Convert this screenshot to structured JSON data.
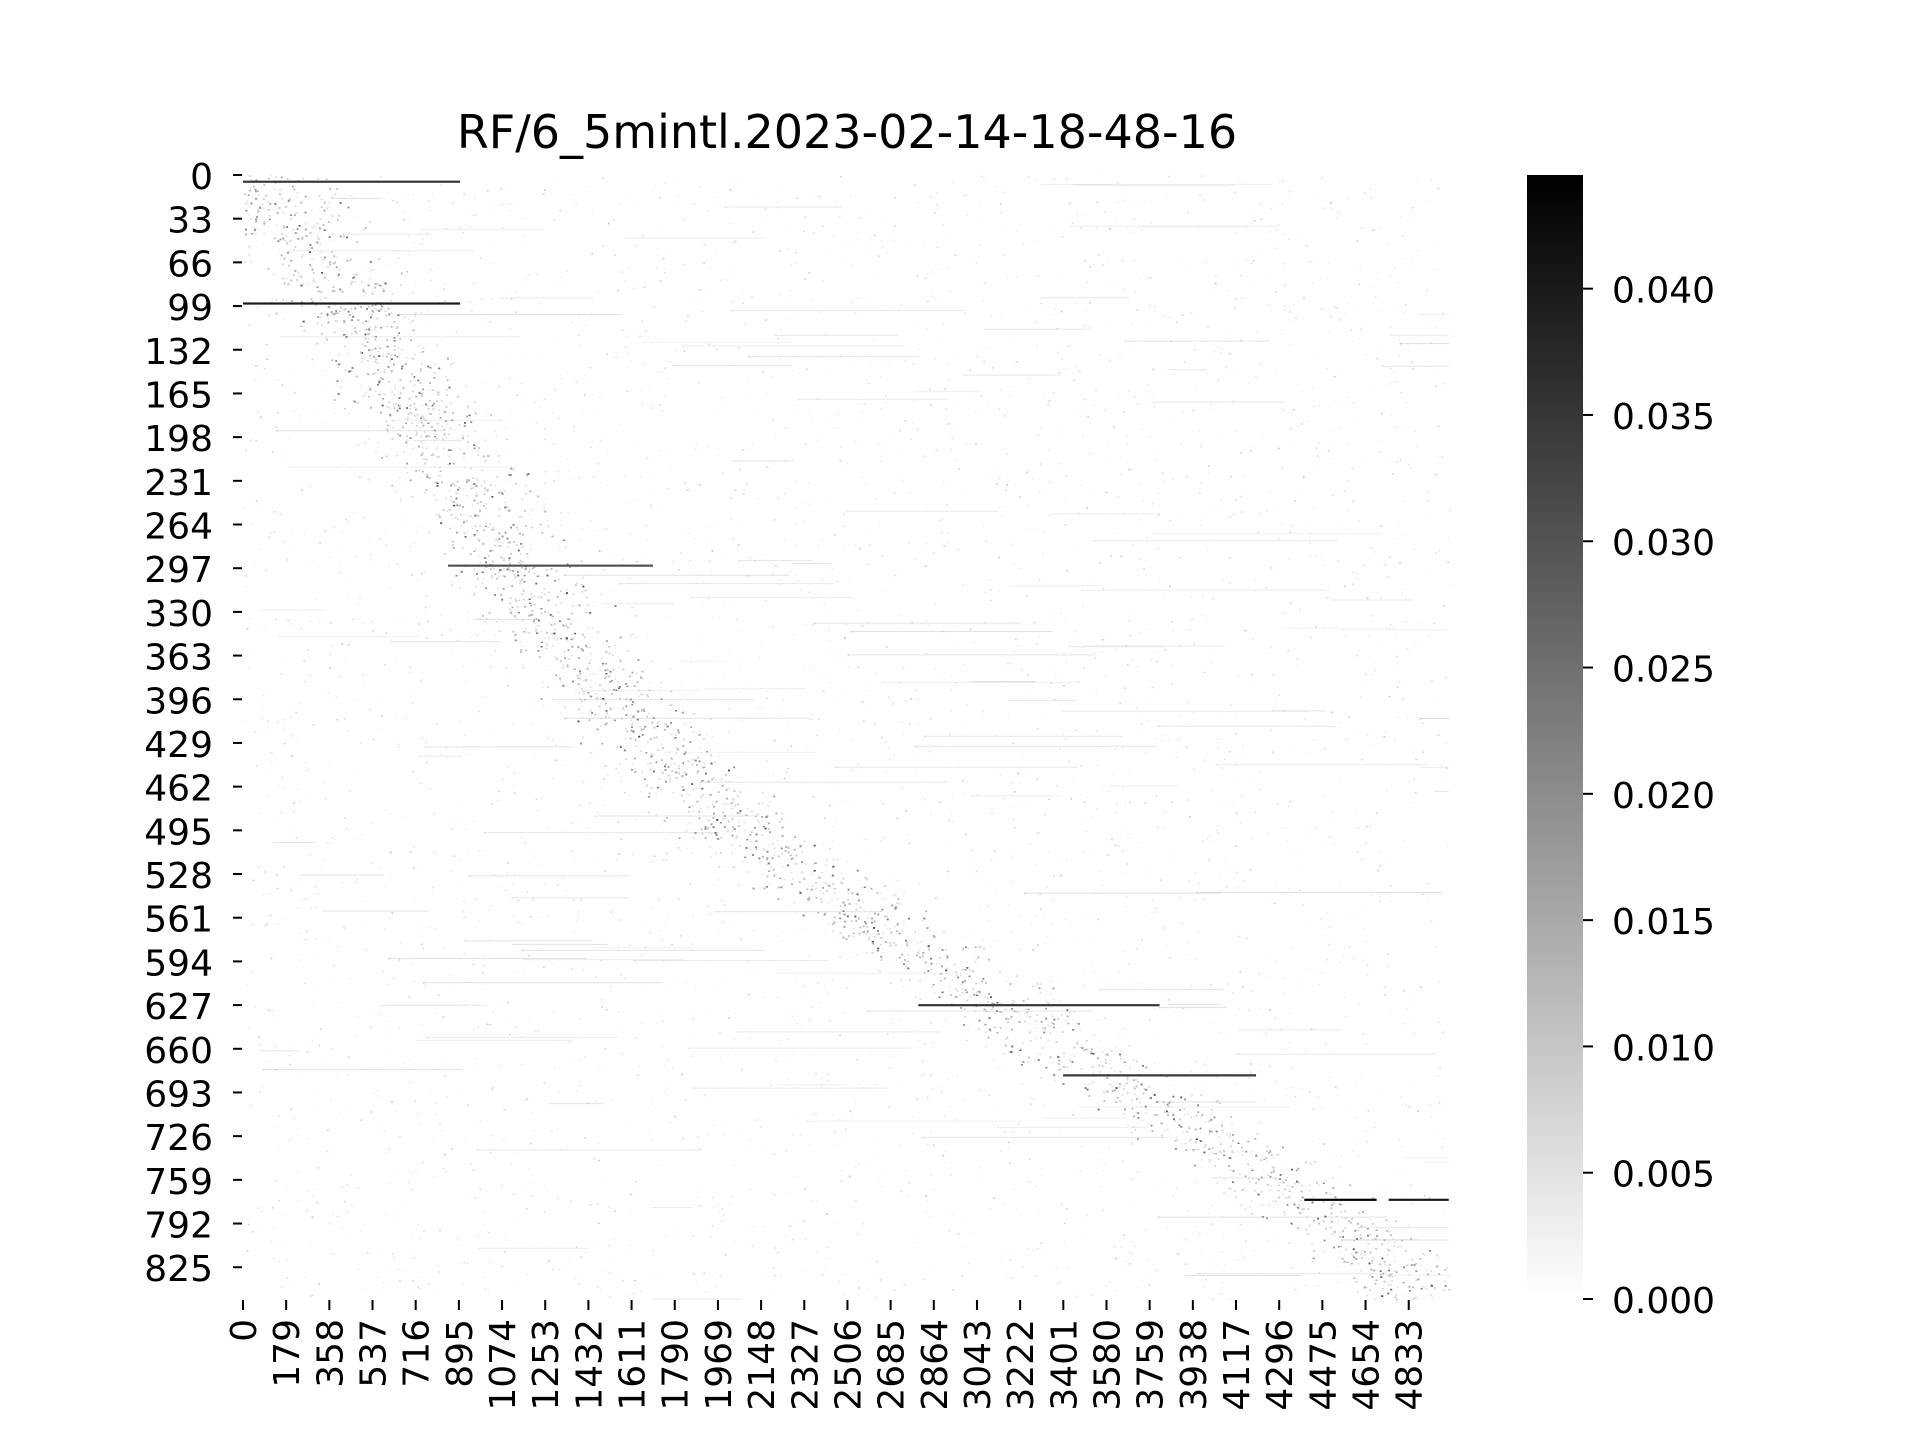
{
  "chart_data": {
    "type": "heatmap",
    "title": "RF/6_5mintl.2023-02-14-18-48-16",
    "xlabel": "",
    "ylabel": "",
    "n_rows": 849,
    "n_cols": 5000,
    "x_ticks": [
      0,
      179,
      358,
      537,
      716,
      895,
      1074,
      1253,
      1432,
      1611,
      1790,
      1969,
      2148,
      2327,
      2506,
      2685,
      2864,
      3043,
      3222,
      3401,
      3580,
      3759,
      3938,
      4117,
      4296,
      4475,
      4654,
      4833
    ],
    "y_ticks": [
      0,
      33,
      66,
      99,
      132,
      165,
      198,
      231,
      264,
      297,
      330,
      363,
      396,
      429,
      462,
      495,
      528,
      561,
      594,
      627,
      660,
      693,
      726,
      759,
      792,
      825
    ],
    "colorbar": {
      "range": [
        0.0,
        0.0445
      ],
      "ticks": [
        0.0,
        0.005,
        0.01,
        0.015,
        0.02,
        0.025,
        0.03,
        0.035,
        0.04
      ],
      "tick_labels": [
        "0.000",
        "0.005",
        "0.010",
        "0.015",
        "0.020",
        "0.025",
        "0.030",
        "0.035",
        "0.040"
      ],
      "colormap": "white-to-black (greys)",
      "low_color": "#ffffff",
      "high_color": "#000000"
    },
    "pattern": {
      "background_value": 0.0,
      "diagonal_band": [
        {
          "row": 0,
          "col": 60
        },
        {
          "row": 99,
          "col": 450
        },
        {
          "row": 231,
          "col": 900
        },
        {
          "row": 330,
          "col": 1250
        },
        {
          "row": 429,
          "col": 1700
        },
        {
          "row": 495,
          "col": 2050
        },
        {
          "row": 561,
          "col": 2600
        },
        {
          "row": 627,
          "col": 3150
        },
        {
          "row": 693,
          "col": 3700
        },
        {
          "row": 759,
          "col": 4300
        },
        {
          "row": 849,
          "col": 4950
        }
      ],
      "dark_streaks": [
        {
          "row": 5,
          "col_start": 0,
          "col_end": 900,
          "value": 0.035
        },
        {
          "row": 97,
          "col_start": 0,
          "col_end": 900,
          "value": 0.04
        },
        {
          "row": 295,
          "col_start": 850,
          "col_end": 1700,
          "value": 0.03
        },
        {
          "row": 627,
          "col_start": 2800,
          "col_end": 3800,
          "value": 0.035
        },
        {
          "row": 680,
          "col_start": 3400,
          "col_end": 4200,
          "value": 0.035
        },
        {
          "row": 774,
          "col_start": 4400,
          "col_end": 4700,
          "value": 0.045
        },
        {
          "row": 774,
          "col_start": 4750,
          "col_end": 4999,
          "value": 0.04
        }
      ]
    }
  }
}
